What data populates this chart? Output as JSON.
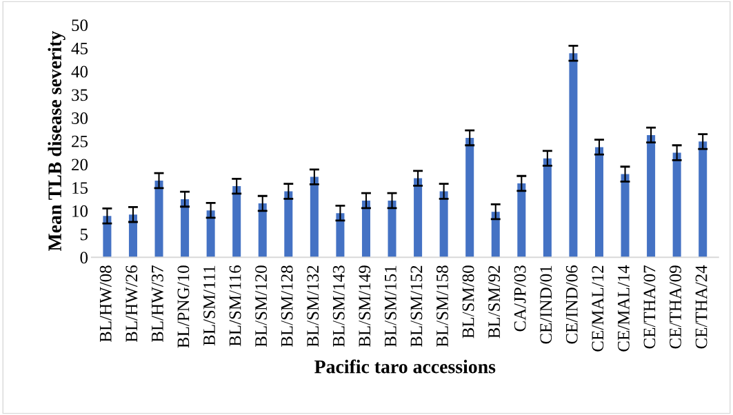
{
  "chart_data": {
    "type": "bar",
    "xlabel": "Pacific taro accessions",
    "ylabel": "Mean TLB disease severity",
    "categories": [
      "BL/HW/08",
      "BL/HW/26",
      "BL/HW/37",
      "BL/PNG/10",
      "BL/SM/111",
      "BL/SM/116",
      "BL/SM/120",
      "BL/SM/128",
      "BL/SM/132",
      "BL/SM/143",
      "BL/SM/149",
      "BL/SM/151",
      "BL/SM/152",
      "BL/SM/158",
      "BL/SM/80",
      "BL/SM/92",
      "CA/JP/03",
      "CE/IND/01",
      "CE/IND/06",
      "CE/MAL/12",
      "CE/MAL/14",
      "CE/THA/07",
      "CE/THA/09",
      "CE/THA/24"
    ],
    "values": [
      8.9,
      9.2,
      16.5,
      12.5,
      10.1,
      15.3,
      11.6,
      14.2,
      17.3,
      9.5,
      12.2,
      12.2,
      17.0,
      14.2,
      25.7,
      9.8,
      15.9,
      21.3,
      43.9,
      23.7,
      17.9,
      26.3,
      22.5,
      24.9
    ],
    "errors": [
      1.6,
      1.6,
      1.6,
      1.6,
      1.6,
      1.6,
      1.6,
      1.6,
      1.6,
      1.6,
      1.6,
      1.6,
      1.6,
      1.6,
      1.6,
      1.6,
      1.6,
      1.6,
      1.6,
      1.6,
      1.6,
      1.6,
      1.6,
      1.6
    ],
    "color": "#4472c4",
    "ylim": [
      0,
      50
    ],
    "yticks": [
      0,
      5,
      10,
      15,
      20,
      25,
      30,
      35,
      40,
      45,
      50
    ],
    "grid": false,
    "legend": false
  }
}
